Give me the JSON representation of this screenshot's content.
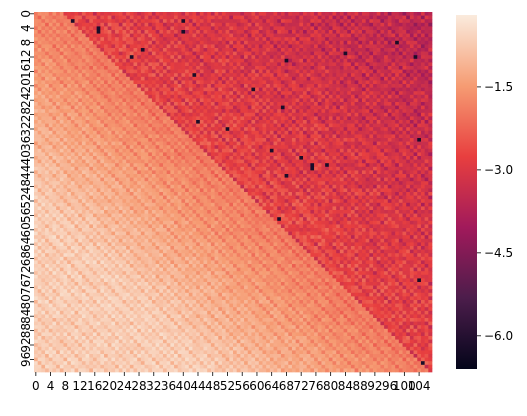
{
  "chart_data": {
    "type": "heatmap",
    "title": "",
    "xlabel": "",
    "ylabel": "",
    "columns": 108,
    "rows": 100,
    "x_tick_labels": [
      "0",
      "4",
      "8",
      "12",
      "16",
      "20",
      "24",
      "28",
      "32",
      "36",
      "40",
      "44",
      "48",
      "52",
      "56",
      "60",
      "64",
      "68",
      "72",
      "76",
      "80",
      "84",
      "88",
      "92",
      "96",
      "100",
      "104"
    ],
    "x_tick_step": 4,
    "y_tick_labels": [
      "0",
      "4",
      "8",
      "12",
      "16",
      "20",
      "24",
      "28",
      "32",
      "36",
      "40",
      "44",
      "48",
      "52",
      "56",
      "60",
      "64",
      "68",
      "72",
      "76",
      "80",
      "84",
      "88",
      "92",
      "96"
    ],
    "y_tick_step": 4,
    "pattern": {
      "description_free": true,
      "diagonal_period_columns": 4,
      "boundary_offset_columns": 8,
      "upper_triangle_value_range": [
        -2.4,
        -0.2
      ],
      "lower_triangle_value_range": [
        -4.0,
        -2.0
      ],
      "extreme_min_value": -6.6
    },
    "colorbar": {
      "vmin": -6.6,
      "vmax": -0.2,
      "ticks": [
        -1.5,
        -3.0,
        -4.5,
        -6.0
      ],
      "tick_labels": [
        "−1.5",
        "−3.0",
        "−4.5",
        "−6.0"
      ],
      "colormap": "rocket",
      "stops": [
        "#03051a",
        "#4c1d4b",
        "#a11a5b",
        "#e83f3f",
        "#f69c73",
        "#faebdd"
      ]
    }
  }
}
